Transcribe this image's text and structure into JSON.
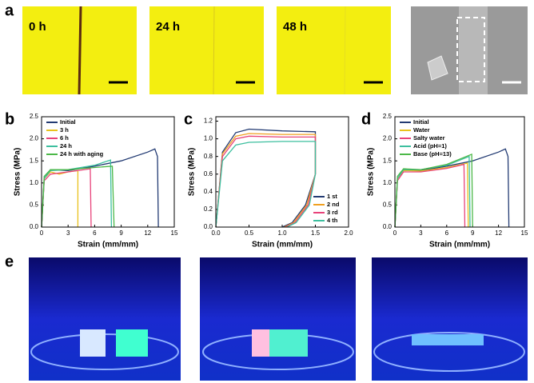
{
  "panel_labels": [
    "a",
    "b",
    "c",
    "d",
    "e"
  ],
  "panel_a": {
    "images": [
      {
        "label": "0 h"
      },
      {
        "label": "24 h"
      },
      {
        "label": "48 h"
      }
    ]
  },
  "chart_data": [
    {
      "type": "line",
      "xlabel": "Strain (mm/mm)",
      "ylabel": "Stress (MPa)",
      "legend": "upper left",
      "xlim": [
        0,
        15
      ],
      "xticks": [
        {
          "value": 0,
          "label": "0"
        },
        3,
        6,
        9,
        12,
        15
      ],
      "ylim": [
        0,
        2.5
      ],
      "yticks": [
        {
          "value": 0,
          "label": "0.0"
        },
        0.5,
        {
          "value": 1,
          "label": "1.0"
        },
        1.5,
        {
          "value": 2,
          "label": "2.0"
        },
        2.5
      ],
      "series": [
        {
          "name": "Initial",
          "color": "#233b73",
          "x": [
            0,
            0.3,
            1,
            3,
            6,
            9,
            12,
            12.8,
            13.1,
            13.2
          ],
          "values": [
            0,
            1.1,
            1.3,
            1.28,
            1.38,
            1.5,
            1.7,
            1.77,
            1.6,
            0
          ]
        },
        {
          "name": "3 h",
          "color": "#e9c11c",
          "x": [
            0,
            0.3,
            1,
            2,
            3,
            4.1,
            4.1
          ],
          "values": [
            0,
            1.1,
            1.25,
            1.2,
            1.25,
            1.28,
            0
          ]
        },
        {
          "name": "6 h",
          "color": "#e8437a",
          "x": [
            0,
            0.3,
            1,
            3,
            5.5,
            5.6
          ],
          "values": [
            0,
            1.05,
            1.2,
            1.25,
            1.32,
            0
          ]
        },
        {
          "name": "24 h",
          "color": "#3dbf9f",
          "x": [
            0,
            0.3,
            1,
            3,
            6,
            7.8,
            7.9
          ],
          "values": [
            0,
            1.1,
            1.28,
            1.3,
            1.4,
            1.52,
            0
          ]
        },
        {
          "name": "24 h with aging",
          "color": "#4cb848",
          "x": [
            0,
            0.3,
            1,
            3,
            6,
            8,
            8.2
          ],
          "values": [
            0,
            1.15,
            1.3,
            1.3,
            1.35,
            1.38,
            0
          ]
        }
      ]
    },
    {
      "type": "line",
      "xlabel": "Strain (mm/mm)",
      "ylabel": "Stress (MPa)",
      "legend": "lower right",
      "xlim": [
        0,
        2
      ],
      "xticks": [
        {
          "value": 0,
          "label": "0.0"
        },
        0.5,
        {
          "value": 1,
          "label": "1.0"
        },
        1.5,
        {
          "value": 2,
          "label": "2.0"
        }
      ],
      "ylim": [
        0,
        1.25
      ],
      "yticks": [
        {
          "value": 0,
          "label": "0.0"
        },
        0.2,
        0.4,
        0.6,
        0.8,
        {
          "value": 1,
          "label": "1.0"
        },
        1.2
      ],
      "series": [
        {
          "name": "1 st",
          "color": "#233b73",
          "x": [
            0,
            0.1,
            0.3,
            0.5,
            1,
            1.5,
            1.5,
            1.35,
            1.15,
            1.0
          ],
          "values": [
            0,
            0.85,
            1.07,
            1.11,
            1.09,
            1.08,
            0.6,
            0.25,
            0.05,
            0
          ]
        },
        {
          "name": "2 nd",
          "color": "#f0a020",
          "x": [
            0,
            0.1,
            0.3,
            0.5,
            1,
            1.5,
            1.5,
            1.37,
            1.17,
            1.03
          ],
          "values": [
            0,
            0.83,
            1.03,
            1.06,
            1.05,
            1.05,
            0.6,
            0.25,
            0.05,
            0
          ]
        },
        {
          "name": "3 rd",
          "color": "#e8437a",
          "x": [
            0,
            0.1,
            0.3,
            0.5,
            1,
            1.5,
            1.5,
            1.39,
            1.19,
            1.05
          ],
          "values": [
            0,
            0.8,
            1.0,
            1.03,
            1.02,
            1.02,
            0.6,
            0.25,
            0.05,
            0
          ]
        },
        {
          "name": "4 th",
          "color": "#3dbf9f",
          "x": [
            0,
            0.1,
            0.3,
            0.5,
            1,
            1.5,
            1.5,
            1.41,
            1.21,
            1.07
          ],
          "values": [
            0,
            0.75,
            0.93,
            0.96,
            0.97,
            0.97,
            0.6,
            0.25,
            0.05,
            0
          ]
        }
      ]
    },
    {
      "type": "line",
      "xlabel": "Strain (mm/mm)",
      "ylabel": "Stress (MPa)",
      "legend": "upper left",
      "xlim": [
        0,
        15
      ],
      "xticks": [
        {
          "value": 0,
          "label": "0"
        },
        3,
        6,
        9,
        12,
        15
      ],
      "ylim": [
        0,
        2.5
      ],
      "yticks": [
        {
          "value": 0,
          "label": "0.0"
        },
        0.5,
        {
          "value": 1,
          "label": "1.0"
        },
        1.5,
        {
          "value": 2,
          "label": "2.0"
        },
        2.5
      ],
      "series": [
        {
          "name": "Initial",
          "color": "#233b73",
          "x": [
            0,
            0.3,
            1,
            3,
            6,
            9,
            12,
            12.8,
            13.1,
            13.2
          ],
          "values": [
            0,
            1.1,
            1.3,
            1.28,
            1.38,
            1.5,
            1.7,
            1.77,
            1.6,
            0
          ]
        },
        {
          "name": "Water",
          "color": "#e9c11c",
          "x": [
            0,
            0.3,
            1,
            3,
            6,
            8.4,
            8.5
          ],
          "values": [
            0,
            1.1,
            1.28,
            1.27,
            1.35,
            1.45,
            0
          ]
        },
        {
          "name": "Salty water",
          "color": "#e8437a",
          "x": [
            0,
            0.3,
            1,
            3,
            6,
            8.0,
            8.1
          ],
          "values": [
            0,
            1.05,
            1.25,
            1.25,
            1.33,
            1.42,
            0
          ]
        },
        {
          "name": "Acid (pH=1)",
          "color": "#3dbf9f",
          "x": [
            0,
            0.3,
            1,
            3,
            6,
            8.6,
            8.7
          ],
          "values": [
            0,
            1.1,
            1.3,
            1.3,
            1.4,
            1.6,
            0
          ]
        },
        {
          "name": "Base (pH=13)",
          "color": "#4cb848",
          "x": [
            0,
            0.3,
            1,
            3,
            6,
            8.9,
            9.0
          ],
          "values": [
            0,
            1.15,
            1.32,
            1.3,
            1.42,
            1.65,
            0
          ]
        }
      ]
    }
  ]
}
